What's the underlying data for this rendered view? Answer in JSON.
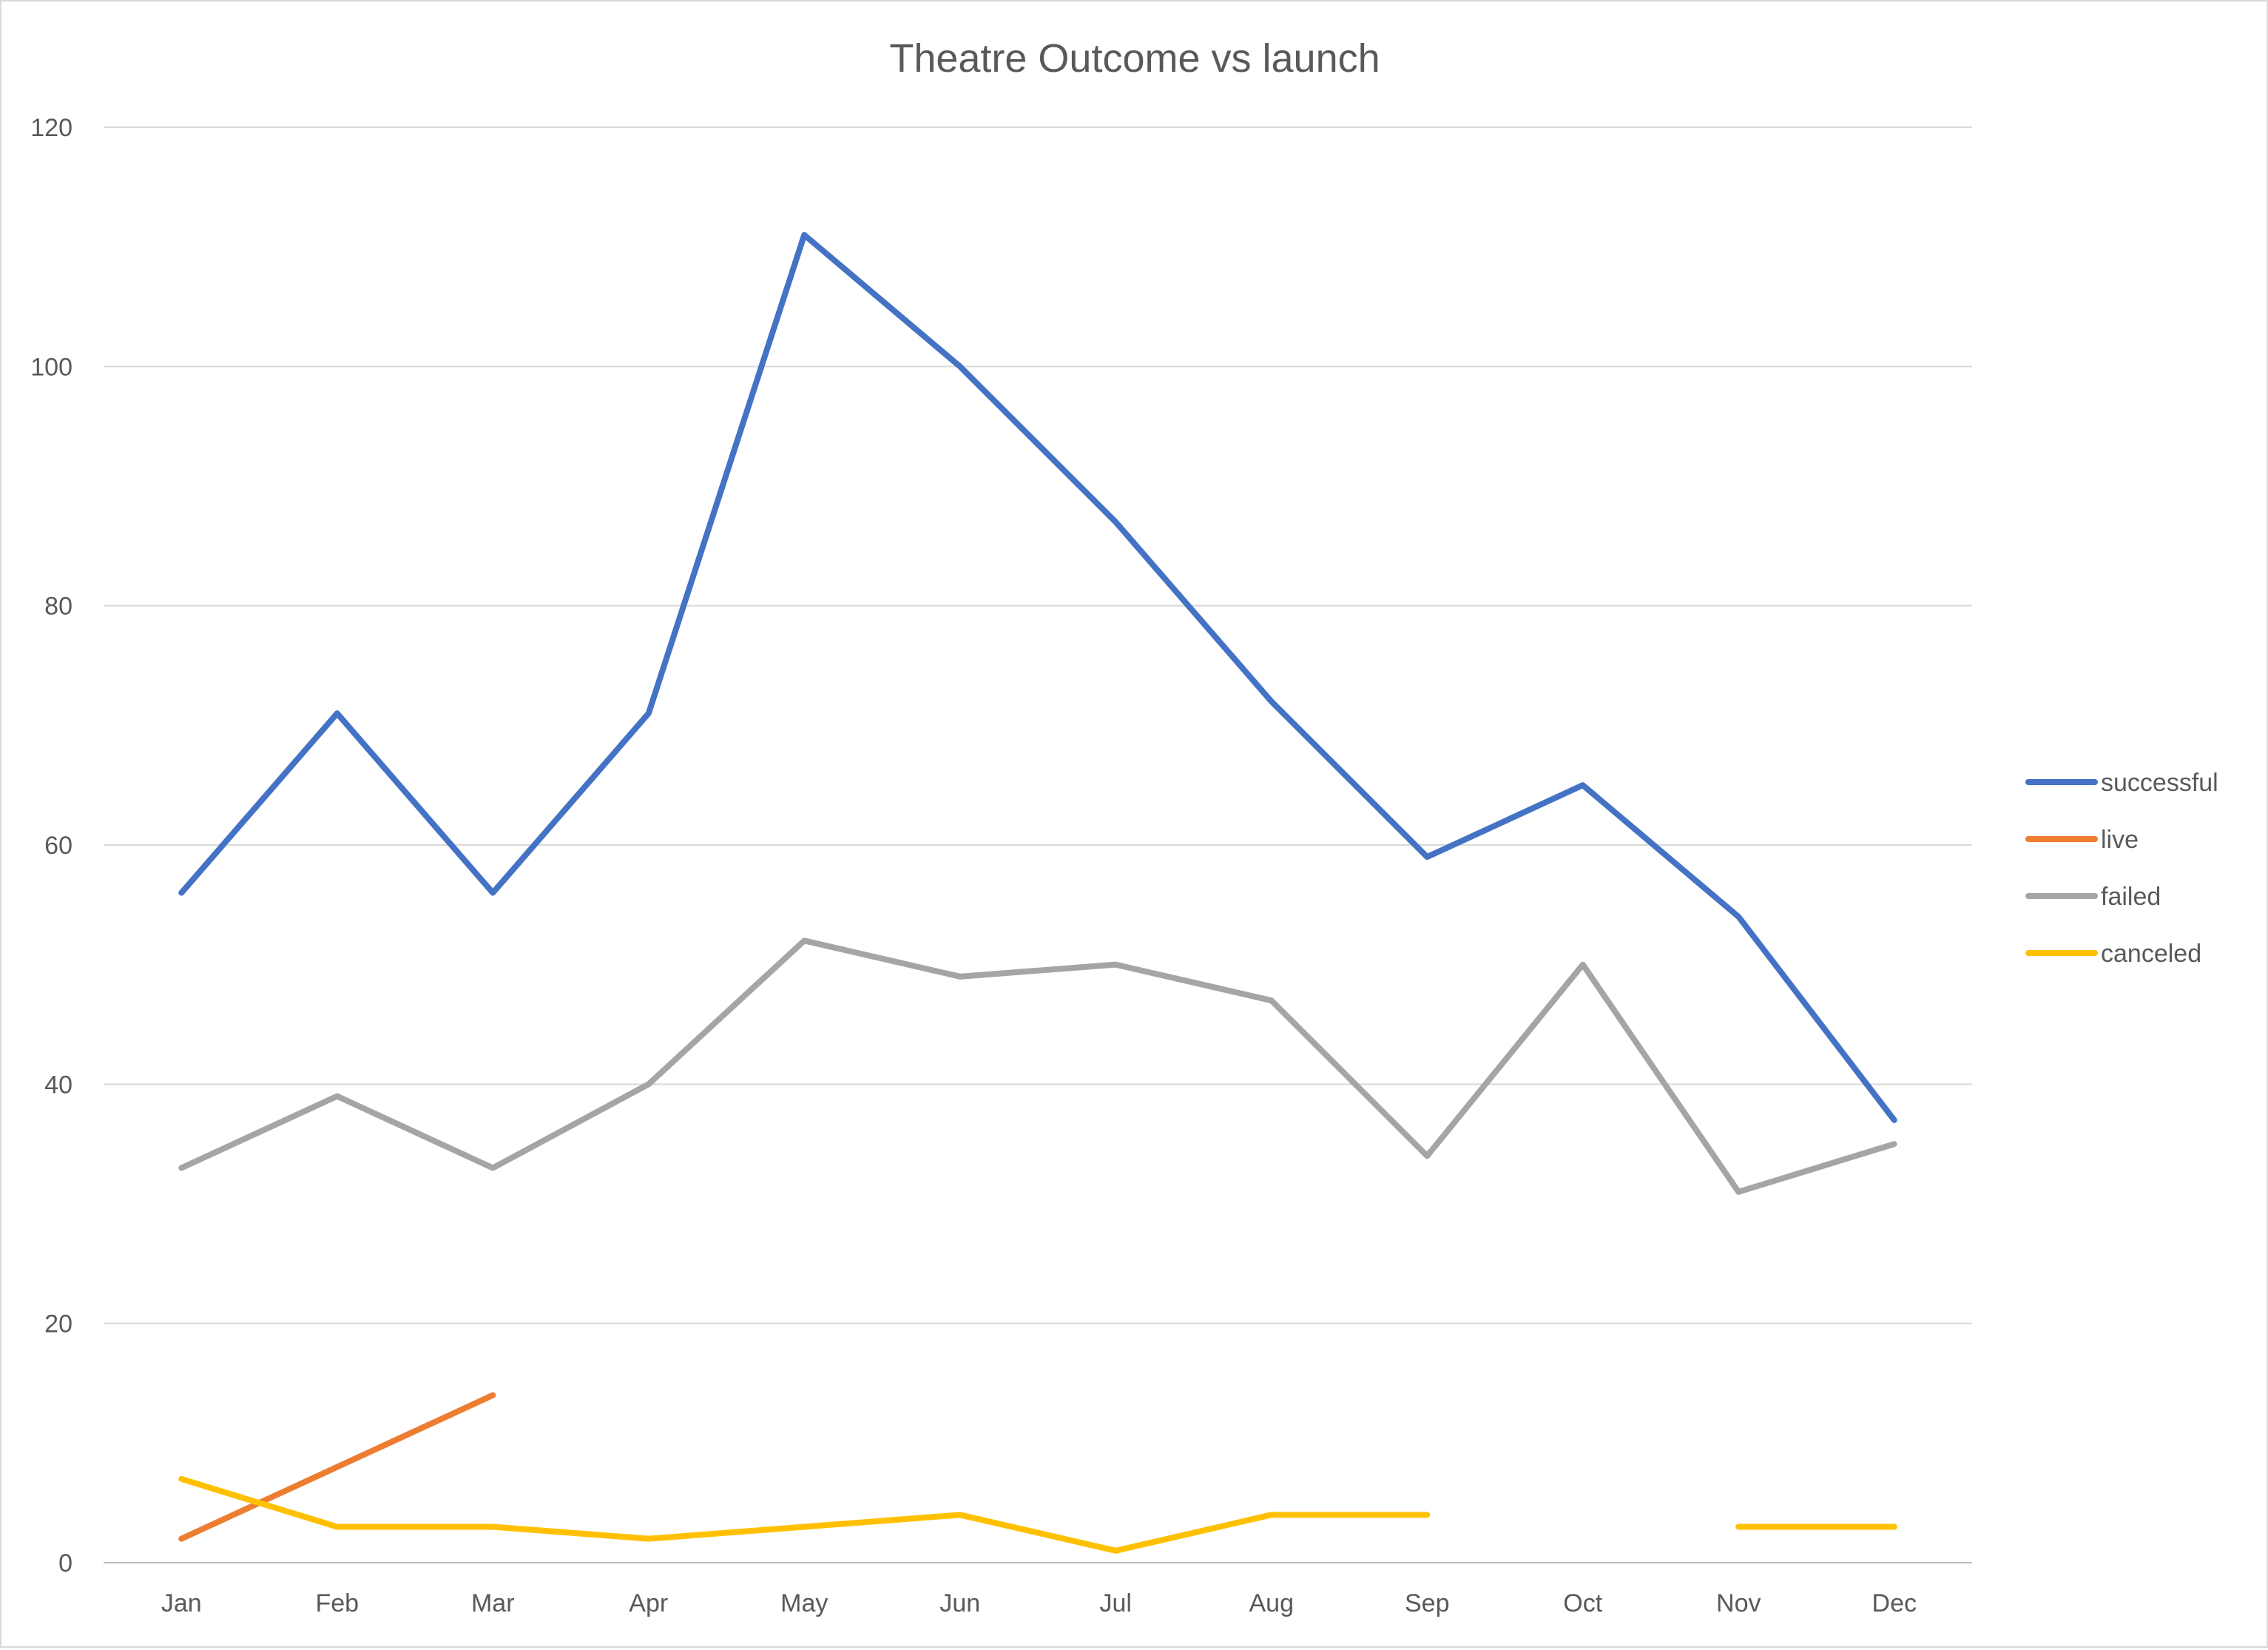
{
  "chart_data": {
    "type": "line",
    "title": "Theatre Outcome vs launch",
    "xlabel": "",
    "ylabel": "",
    "categories": [
      "Jan",
      "Feb",
      "Mar",
      "Apr",
      "May",
      "Jun",
      "Jul",
      "Aug",
      "Sep",
      "Oct",
      "Nov",
      "Dec"
    ],
    "ylim": [
      0,
      120
    ],
    "yticks": [
      "0",
      "20",
      "40",
      "60",
      "80",
      "100",
      "120"
    ],
    "grid": true,
    "legend_position": "right",
    "series": [
      {
        "name": "successful",
        "color": "#4472C4",
        "values": [
          56,
          71,
          56,
          71,
          111,
          100,
          87,
          72,
          59,
          65,
          54,
          37
        ]
      },
      {
        "name": "live",
        "color": "#ED7D31",
        "values": [
          2,
          8,
          14,
          null,
          null,
          null,
          null,
          null,
          null,
          null,
          null,
          null
        ]
      },
      {
        "name": "failed",
        "color": "#A5A5A5",
        "values": [
          33,
          39,
          33,
          40,
          52,
          49,
          50,
          47,
          34,
          50,
          31,
          35
        ]
      },
      {
        "name": "canceled",
        "color": "#FFC000",
        "values": [
          7,
          3,
          3,
          2,
          3,
          4,
          1,
          4,
          4,
          null,
          3,
          3
        ]
      }
    ]
  }
}
